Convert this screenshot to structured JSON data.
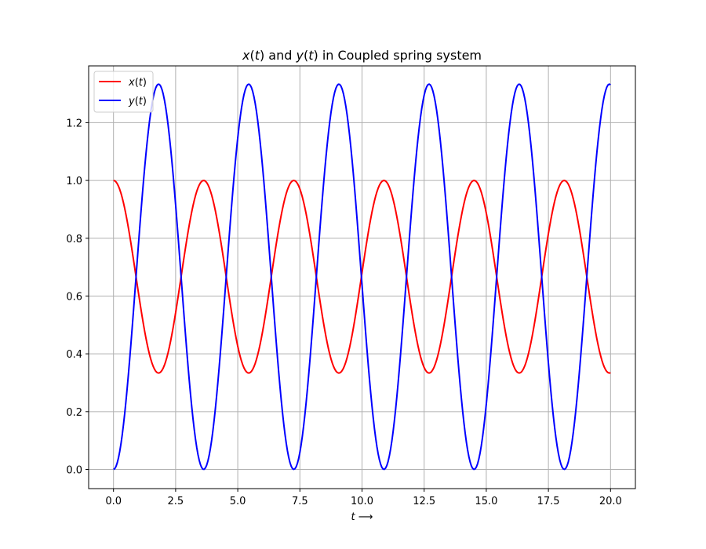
{
  "chart_data": {
    "type": "line",
    "title": {
      "parts": [
        {
          "text": "x",
          "italic": true
        },
        {
          "text": "(",
          "italic": false
        },
        {
          "text": "t",
          "italic": true
        },
        {
          "text": ") and ",
          "italic": false
        },
        {
          "text": "y",
          "italic": true
        },
        {
          "text": "(",
          "italic": false
        },
        {
          "text": "t",
          "italic": true
        },
        {
          "text": ") in Coupled spring system",
          "italic": false
        }
      ]
    },
    "xlabel": {
      "parts": [
        {
          "text": "t",
          "italic": true
        },
        {
          "text": " ⟶",
          "italic": false
        }
      ]
    },
    "ylabel": "",
    "xlim": [
      -1.0,
      21.0
    ],
    "ylim": [
      -0.0665,
      1.3965
    ],
    "x_ticks": [
      0.0,
      2.5,
      5.0,
      7.5,
      10.0,
      12.5,
      15.0,
      17.5,
      20.0
    ],
    "x_tick_labels": [
      "0.0",
      "2.5",
      "5.0",
      "7.5",
      "10.0",
      "12.5",
      "15.0",
      "17.5",
      "20.0"
    ],
    "y_ticks": [
      0.0,
      0.2,
      0.4,
      0.6,
      0.8,
      1.0,
      1.2
    ],
    "y_tick_labels": [
      "0.0",
      "0.2",
      "0.4",
      "0.6",
      "0.8",
      "1.0",
      "1.2"
    ],
    "grid": true,
    "legend_position": "upper-left",
    "colors": {
      "x": "#ff0000",
      "y": "#0000ff",
      "grid": "#b0b0b0",
      "axes": "#000000"
    },
    "series_model": {
      "x_range": [
        0,
        20
      ],
      "sample_count": 400,
      "period": 3.6276,
      "x_series": {
        "mean": 0.6667,
        "amplitude": 0.3333,
        "phase": "cos",
        "start": 1.0,
        "min": 0.333,
        "max": 1.0
      },
      "y_series": {
        "mean": 0.6667,
        "amplitude": 0.6667,
        "phase": "-cos",
        "start": 0.0,
        "min": 0.0,
        "max": 1.333
      }
    },
    "series": [
      {
        "name_parts": [
          {
            "text": "x",
            "italic": true
          },
          {
            "text": "(",
            "italic": false
          },
          {
            "text": "t",
            "italic": true
          },
          {
            "text": ")",
            "italic": false
          }
        ],
        "color": "#ff0000",
        "key": "x_series"
      },
      {
        "name_parts": [
          {
            "text": "y",
            "italic": true
          },
          {
            "text": "(",
            "italic": false
          },
          {
            "text": "t",
            "italic": true
          },
          {
            "text": ")",
            "italic": false
          }
        ],
        "color": "#0000ff",
        "key": "y_series"
      }
    ]
  }
}
